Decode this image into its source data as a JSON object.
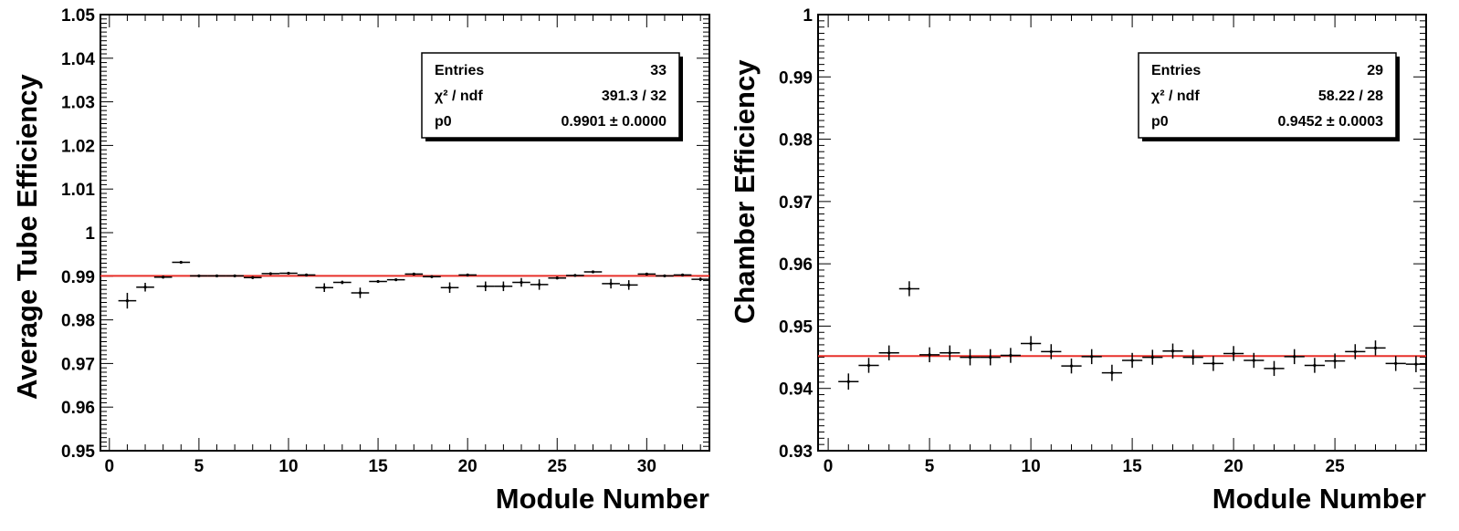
{
  "chart_data": [
    {
      "type": "scatter",
      "ylabel": "Average Tube Efficiency",
      "xlabel": "Module Number",
      "xlim": [
        -0.5,
        33.5
      ],
      "ylim": [
        0.95,
        1.05
      ],
      "x_ticks": [
        0,
        5,
        10,
        15,
        20,
        25,
        30
      ],
      "y_ticks": [
        0.95,
        0.96,
        0.97,
        0.98,
        0.99,
        1,
        1.01,
        1.02,
        1.03,
        1.04,
        1.05
      ],
      "x_tick_labels": [
        "0",
        "5",
        "10",
        "15",
        "20",
        "25",
        "30"
      ],
      "y_tick_labels": [
        "0.95",
        "0.96",
        "0.97",
        "0.98",
        "0.99",
        "1",
        "1.01",
        "1.02",
        "1.03",
        "1.04",
        "1.05"
      ],
      "grid": false,
      "legend_placement": "top-right",
      "fit": {
        "p0": 0.9901,
        "color": "#e8302a"
      },
      "stats": [
        {
          "label": "Entries",
          "value": "33"
        },
        {
          "label": "χ² / ndf",
          "value": "391.3 / 32"
        },
        {
          "label": "p0",
          "value": "0.9901 ± 0.0000"
        }
      ],
      "series": [
        {
          "x": [
            1,
            2,
            3,
            4,
            5,
            6,
            7,
            8,
            9,
            10,
            11,
            12,
            13,
            14,
            15,
            16,
            17,
            18,
            19,
            20,
            21,
            22,
            23,
            24,
            25,
            26,
            27,
            28,
            29,
            30,
            31,
            32,
            33
          ],
          "y": [
            0.9844,
            0.9875,
            0.9898,
            0.9932,
            0.9901,
            0.9901,
            0.9901,
            0.9897,
            0.9906,
            0.9907,
            0.9903,
            0.9874,
            0.9886,
            0.9862,
            0.9888,
            0.9892,
            0.9905,
            0.9899,
            0.9874,
            0.9903,
            0.9877,
            0.9877,
            0.9886,
            0.9881,
            0.9896,
            0.9902,
            0.991,
            0.9883,
            0.988,
            0.9905,
            0.9901,
            0.9903,
            0.9893
          ],
          "yerr": [
            0.0018,
            0.001,
            0.0003,
            0.0003,
            0.0002,
            0.0002,
            0.0002,
            0.0003,
            0.0002,
            0.0002,
            0.0003,
            0.001,
            0.0004,
            0.0012,
            0.0002,
            0.0002,
            0.0002,
            0.0002,
            0.0012,
            0.0002,
            0.0011,
            0.0011,
            0.001,
            0.0012,
            0.0003,
            0.0002,
            0.0003,
            0.0011,
            0.0011,
            0.0002,
            0.0002,
            0.0002,
            0.0004
          ]
        }
      ]
    },
    {
      "type": "scatter",
      "ylabel": "Chamber Efficiency",
      "xlabel": "Module Number",
      "xlim": [
        -0.5,
        29.5
      ],
      "ylim": [
        0.93,
        1.0
      ],
      "x_ticks": [
        0,
        5,
        10,
        15,
        20,
        25
      ],
      "y_ticks": [
        0.93,
        0.94,
        0.95,
        0.96,
        0.97,
        0.98,
        0.99,
        1
      ],
      "x_tick_labels": [
        "0",
        "5",
        "10",
        "15",
        "20",
        "25"
      ],
      "y_tick_labels": [
        "0.93",
        "0.94",
        "0.95",
        "0.96",
        "0.97",
        "0.98",
        "0.99",
        "1"
      ],
      "grid": false,
      "legend_placement": "top-right",
      "fit": {
        "p0": 0.9452,
        "color": "#e8302a"
      },
      "stats": [
        {
          "label": "Entries",
          "value": "29"
        },
        {
          "label": "χ² / ndf",
          "value": "58.22 / 28"
        },
        {
          "label": "p0",
          "value": "0.9452 ± 0.0003"
        }
      ],
      "series": [
        {
          "x": [
            1,
            2,
            3,
            4,
            5,
            6,
            7,
            8,
            9,
            10,
            11,
            12,
            13,
            14,
            15,
            16,
            17,
            18,
            19,
            20,
            21,
            22,
            23,
            24,
            25,
            26,
            27,
            28,
            29
          ],
          "y": [
            0.9411,
            0.9437,
            0.9457,
            0.956,
            0.9454,
            0.9457,
            0.945,
            0.945,
            0.9453,
            0.9472,
            0.9459,
            0.9436,
            0.9451,
            0.9425,
            0.9445,
            0.945,
            0.946,
            0.945,
            0.944,
            0.9456,
            0.9445,
            0.9432,
            0.9451,
            0.9437,
            0.9444,
            0.9459,
            0.9465,
            0.944,
            0.9439
          ],
          "yerr": [
            0.0013,
            0.0012,
            0.0012,
            0.0012,
            0.0012,
            0.0012,
            0.0013,
            0.0013,
            0.0012,
            0.0012,
            0.0012,
            0.0012,
            0.0012,
            0.0013,
            0.0012,
            0.0012,
            0.0012,
            0.0012,
            0.0012,
            0.0012,
            0.0012,
            0.0012,
            0.0012,
            0.0012,
            0.0012,
            0.0012,
            0.0012,
            0.0012,
            0.0013
          ]
        }
      ]
    }
  ]
}
